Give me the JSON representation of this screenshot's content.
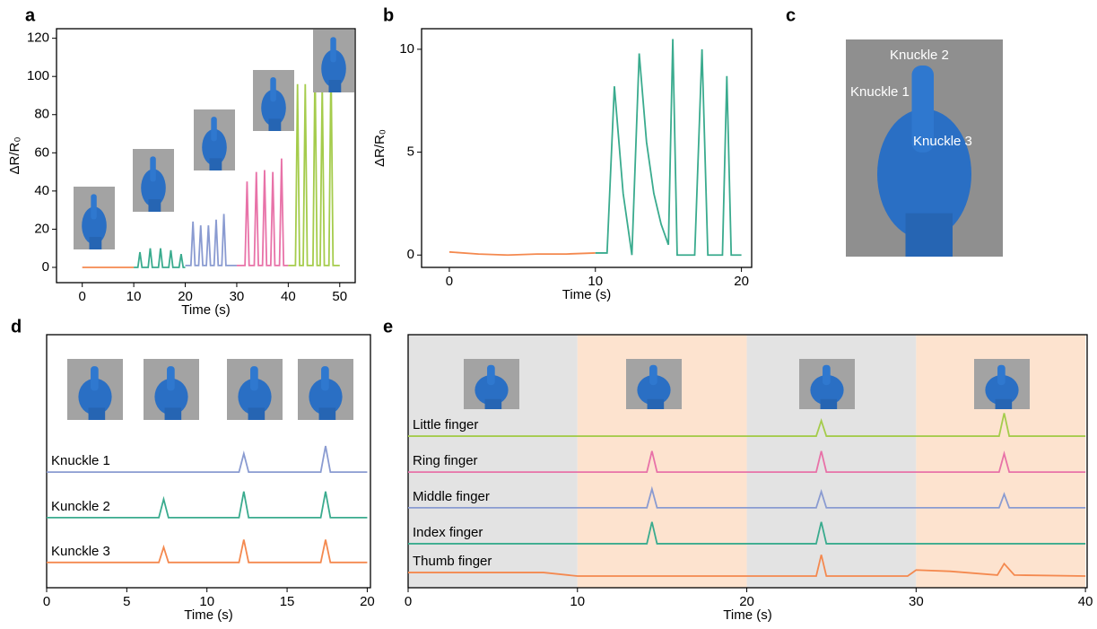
{
  "chart_data": [
    {
      "type": "line",
      "panel": "a",
      "xlabel": "Time (s)",
      "ylabel": "ΔR/R₀",
      "xlim": [
        -5,
        53
      ],
      "ylim": [
        -8,
        125
      ],
      "xticks": [
        0,
        10,
        20,
        30,
        40,
        50
      ],
      "yticks": [
        0,
        20,
        40,
        60,
        80,
        100,
        120
      ],
      "series": [
        {
          "color": "#f4894f",
          "x": [
            0,
            10
          ],
          "values": [
            0,
            0
          ]
        },
        {
          "color": "#3aab8e",
          "x": [
            10,
            10.8,
            11.2,
            11.6,
            12.8,
            13.2,
            13.6,
            14.8,
            15.2,
            15.6,
            16.8,
            17.2,
            17.6,
            18.8,
            19.2,
            19.6,
            20
          ],
          "values": [
            0,
            0,
            8,
            0,
            0,
            10,
            0,
            0,
            10,
            0,
            0,
            9,
            0,
            0,
            7,
            0,
            0
          ]
        },
        {
          "color": "#8a9bd1",
          "x": [
            20,
            21.1,
            21.5,
            21.9,
            22.6,
            23,
            23.4,
            24.1,
            24.5,
            24.9,
            25.6,
            26,
            26.4,
            27.1,
            27.5,
            27.9,
            30
          ],
          "values": [
            1,
            1,
            24,
            1,
            1,
            22,
            1,
            1,
            22,
            1,
            1,
            25,
            1,
            1,
            28,
            1,
            1
          ]
        },
        {
          "color": "#e872a8",
          "x": [
            30,
            31.6,
            32,
            32.4,
            33.4,
            33.8,
            34.2,
            35,
            35.4,
            35.8,
            36.6,
            37,
            37.4,
            38.3,
            38.7,
            39.1,
            40
          ],
          "values": [
            1,
            1,
            45,
            1,
            1,
            50,
            1,
            1,
            51,
            1,
            1,
            50,
            1,
            1,
            57,
            1,
            1
          ]
        },
        {
          "color": "#a5cc4c",
          "x": [
            40,
            41.4,
            41.8,
            42.2,
            42.9,
            43.3,
            43.7,
            44.8,
            45.2,
            45.6,
            46.2,
            46.6,
            47,
            47.9,
            48.3,
            48.7,
            50
          ],
          "values": [
            1,
            1,
            96,
            1,
            1,
            96,
            1,
            1,
            107,
            1,
            1,
            96,
            1,
            1,
            107,
            1,
            1
          ]
        }
      ]
    },
    {
      "type": "line",
      "panel": "b",
      "xlabel": "Time (s)",
      "ylabel": "ΔR/R₀",
      "xlim": [
        -1.9,
        20.7
      ],
      "ylim": [
        -0.6,
        11
      ],
      "xticks": [
        0,
        10,
        20
      ],
      "yticks": [
        0,
        5,
        10
      ],
      "series": [
        {
          "color": "#f4894f",
          "x": [
            0,
            2,
            4,
            6,
            8,
            10
          ],
          "values": [
            0.15,
            0.05,
            0,
            0.05,
            0.05,
            0.1
          ]
        },
        {
          "color": "#3aab8e",
          "x": [
            10,
            10.8,
            11.3,
            11.9,
            12.5,
            13,
            13.5,
            14,
            14.5,
            15,
            15.3,
            15.6,
            16,
            16.8,
            17.3,
            17.7,
            18.3,
            18.7,
            19,
            19.3,
            20
          ],
          "values": [
            0.1,
            0.1,
            8.2,
            3,
            0,
            9.8,
            5.5,
            3,
            1.5,
            0.5,
            10.5,
            0,
            0,
            0,
            10,
            0,
            0,
            0,
            8.7,
            0,
            0
          ]
        }
      ]
    },
    {
      "type": "line",
      "panel": "d",
      "xlabel": "Time (s)",
      "labels_on_lines": true,
      "xlim": [
        0,
        20.2
      ],
      "ylim": [
        0,
        10
      ],
      "xticks": [
        0,
        5,
        10,
        15,
        20
      ],
      "series": [
        {
          "name": "Knuckle 1",
          "color": "#8a9bd1",
          "x": [
            0,
            12,
            12.3,
            12.6,
            17.1,
            17.4,
            17.7,
            20
          ],
          "values": [
            4.57,
            4.57,
            5.3,
            4.57,
            4.57,
            5.6,
            4.57,
            4.57
          ]
        },
        {
          "name": "Kunckle 2",
          "color": "#3aab8e",
          "x": [
            0,
            7,
            7.3,
            7.6,
            12,
            12.3,
            12.6,
            17.1,
            17.4,
            17.7,
            20
          ],
          "values": [
            2.77,
            2.77,
            3.5,
            2.77,
            2.77,
            3.8,
            2.77,
            2.77,
            3.8,
            2.77,
            2.77
          ]
        },
        {
          "name": "Kunckle 3",
          "color": "#f4894f",
          "x": [
            0,
            7,
            7.3,
            7.6,
            12,
            12.3,
            12.6,
            17.1,
            17.4,
            17.7,
            20
          ],
          "values": [
            1,
            1,
            1.6,
            1,
            1,
            1.9,
            1,
            1,
            1.9,
            1,
            1
          ]
        }
      ]
    },
    {
      "type": "line",
      "panel": "e",
      "xlabel": "Time (s)",
      "labels_on_lines": true,
      "xlim": [
        0,
        40.1
      ],
      "ylim": [
        0,
        10
      ],
      "xticks": [
        0,
        10,
        20,
        30,
        40
      ],
      "bands": [
        {
          "x0": 0,
          "x1": 10,
          "color": "#e3e3e3"
        },
        {
          "x0": 10,
          "x1": 20,
          "color": "#fde3cf"
        },
        {
          "x0": 20,
          "x1": 30,
          "color": "#e3e3e3"
        },
        {
          "x0": 30,
          "x1": 40,
          "color": "#fde3cf"
        }
      ],
      "series": [
        {
          "name": "Little finger",
          "color": "#a5cc4c",
          "x": [
            0,
            24.1,
            24.4,
            24.7,
            34.9,
            35.2,
            35.5,
            40
          ],
          "values": [
            5.99,
            5.99,
            6.6,
            5.99,
            5.99,
            6.9,
            5.99,
            5.99
          ]
        },
        {
          "name": "Ring finger",
          "color": "#e872a8",
          "x": [
            0,
            14.1,
            14.4,
            14.7,
            24.1,
            24.4,
            24.7,
            34.9,
            35.2,
            35.5,
            40
          ],
          "values": [
            4.57,
            4.57,
            5.4,
            4.57,
            4.57,
            5.4,
            4.57,
            4.57,
            5.3,
            4.57,
            4.57
          ]
        },
        {
          "name": "Middle finger",
          "color": "#8a9bd1",
          "x": [
            0,
            14.1,
            14.4,
            14.7,
            24.1,
            24.4,
            24.7,
            34.9,
            35.2,
            35.5,
            40
          ],
          "values": [
            3.16,
            3.16,
            3.9,
            3.16,
            3.16,
            3.8,
            3.16,
            3.16,
            3.7,
            3.16,
            3.16
          ]
        },
        {
          "name": "Index finger",
          "color": "#3aab8e",
          "x": [
            0,
            14.1,
            14.4,
            14.7,
            24.1,
            24.4,
            24.7,
            40
          ],
          "values": [
            1.74,
            1.74,
            2.6,
            1.74,
            1.74,
            2.6,
            1.74,
            1.74
          ]
        },
        {
          "name": "Thumb finger",
          "color": "#f4894f",
          "x": [
            0,
            8,
            10,
            24.1,
            24.4,
            24.7,
            29.5,
            30,
            32,
            34.8,
            35.2,
            35.8,
            40
          ],
          "values": [
            0.6,
            0.6,
            0.46,
            0.46,
            1.3,
            0.46,
            0.46,
            0.7,
            0.65,
            0.5,
            0.95,
            0.5,
            0.46
          ]
        }
      ]
    }
  ],
  "photo": {
    "panel": "c",
    "labels": [
      "Knuckle 2",
      "Knuckle 1",
      "Knuckle 3"
    ]
  }
}
